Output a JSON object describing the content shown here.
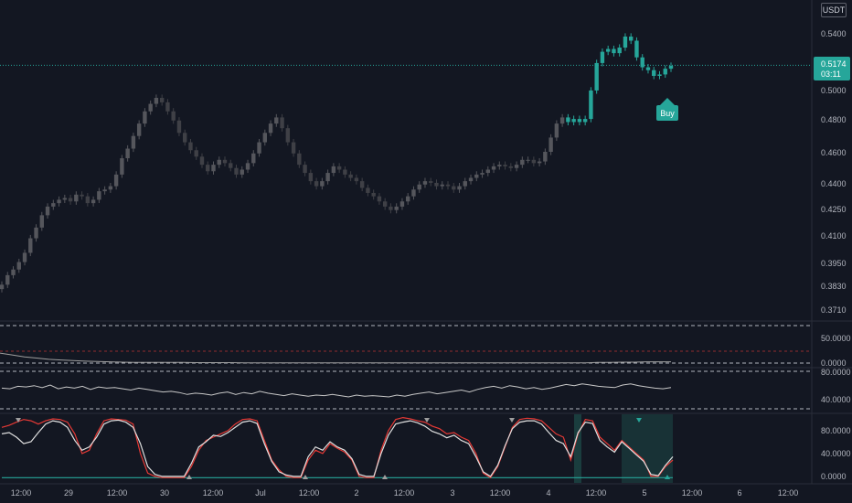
{
  "currency_label": "USDT",
  "colors": {
    "background": "#131722",
    "candle_up": "#4a4a4f",
    "candle_down": "#3a3b40",
    "candle_recent": "#26a69a",
    "signal_buy": "#26a69a",
    "price_line": "#26a69a",
    "osc_red": "#e53935",
    "osc_white": "#e0e0e0",
    "osc_teal": "#26a69a",
    "grid_dash": "#b2b5be"
  },
  "price_axis": {
    "ticks": [
      "0.5400",
      "0.5174",
      "0.5000",
      "0.4800",
      "0.4600",
      "0.4400",
      "0.4250",
      "0.4100",
      "0.3950",
      "0.3830",
      "0.3710"
    ],
    "current_price": "0.5174",
    "countdown": "03:11"
  },
  "buy_label": "Buy",
  "panes": {
    "pane1_ticks": [
      "50.0000",
      "0.0000"
    ],
    "pane2_ticks": [
      "80.0000",
      "40.0000"
    ],
    "pane3_ticks": [
      "80.0000",
      "40.0000",
      "0.0000"
    ]
  },
  "time_axis": [
    "12:00",
    "29",
    "12:00",
    "30",
    "12:00",
    "Jul",
    "12:00",
    "2",
    "12:00",
    "3",
    "12:00",
    "4",
    "12:00",
    "5",
    "12:00",
    "6",
    "12:00"
  ],
  "chart_data": {
    "type": "candlestick",
    "ylim": [
      0.365,
      0.555
    ],
    "price_scale": "log",
    "grid": false,
    "close": [
      0.384,
      0.389,
      0.392,
      0.396,
      0.401,
      0.409,
      0.415,
      0.422,
      0.427,
      0.429,
      0.431,
      0.432,
      0.43,
      0.434,
      0.433,
      0.429,
      0.431,
      0.436,
      0.437,
      0.439,
      0.446,
      0.456,
      0.462,
      0.47,
      0.478,
      0.486,
      0.491,
      0.495,
      0.492,
      0.486,
      0.48,
      0.472,
      0.466,
      0.461,
      0.457,
      0.452,
      0.448,
      0.452,
      0.455,
      0.453,
      0.45,
      0.446,
      0.449,
      0.453,
      0.459,
      0.466,
      0.472,
      0.478,
      0.482,
      0.475,
      0.466,
      0.459,
      0.452,
      0.447,
      0.442,
      0.439,
      0.442,
      0.447,
      0.451,
      0.449,
      0.446,
      0.444,
      0.442,
      0.438,
      0.435,
      0.433,
      0.43,
      0.427,
      0.425,
      0.427,
      0.43,
      0.433,
      0.437,
      0.44,
      0.442,
      0.441,
      0.439,
      0.44,
      0.439,
      0.437,
      0.439,
      0.442,
      0.444,
      0.446,
      0.447,
      0.449,
      0.451,
      0.452,
      0.451,
      0.45,
      0.452,
      0.455,
      0.455,
      0.453,
      0.454,
      0.46,
      0.469,
      0.478,
      0.482,
      0.479,
      0.481,
      0.479,
      0.481,
      0.5,
      0.519,
      0.527,
      0.529,
      0.526,
      0.53,
      0.538,
      0.535,
      0.523,
      0.516,
      0.514,
      0.51,
      0.511,
      0.515,
      0.517
    ]
  },
  "oscillator_1": {
    "range": [
      0,
      60
    ],
    "values": [
      16,
      13,
      10,
      8,
      6,
      5,
      4,
      3,
      2.5,
      2,
      1.5,
      1.2,
      1,
      1,
      1,
      1,
      0.8,
      0.8,
      0.8,
      0.8,
      0.5,
      0.5,
      0.5,
      0.5,
      0.5,
      0.5,
      0.5,
      0.5,
      0.5,
      0.5,
      0.5,
      0.5,
      0.5,
      0.5,
      0.5,
      0.5,
      0.5,
      0.5,
      0.5,
      0.5,
      0.5,
      0.5,
      0.5,
      0.5,
      0.5,
      0.5,
      0.5,
      0.5,
      0.5,
      1,
      1,
      1.5,
      1.5,
      2,
      2,
      2
    ]
  },
  "oscillator_2": {
    "range": [
      25,
      85
    ],
    "values": [
      58,
      57,
      61,
      60,
      62,
      59,
      63,
      57,
      60,
      58,
      61,
      56,
      60,
      58,
      59,
      57,
      55,
      58,
      56,
      54,
      52,
      53,
      51,
      48,
      50,
      49,
      47,
      50,
      52,
      48,
      51,
      49,
      53,
      50,
      48,
      46,
      49,
      47,
      45,
      47,
      46,
      48,
      46,
      44,
      47,
      45,
      46,
      45,
      44,
      47,
      45,
      48,
      50,
      52,
      49,
      51,
      53,
      55,
      52,
      56,
      59,
      61,
      58,
      62,
      60,
      57,
      59,
      56,
      58,
      61,
      64,
      62,
      65,
      63,
      61,
      60,
      59,
      63,
      65,
      62,
      60,
      58,
      57,
      59
    ]
  },
  "oscillator_3": {
    "range": [
      -5,
      100
    ],
    "red": [
      80,
      83,
      88,
      92,
      90,
      85,
      90,
      93,
      92,
      88,
      70,
      40,
      45,
      70,
      90,
      93,
      92,
      91,
      85,
      40,
      10,
      5,
      3,
      3,
      3,
      3,
      20,
      45,
      60,
      65,
      70,
      75,
      85,
      92,
      93,
      90,
      60,
      30,
      15,
      5,
      3,
      3,
      30,
      45,
      40,
      55,
      48,
      42,
      30,
      5,
      3,
      3,
      45,
      75,
      92,
      95,
      93,
      90,
      88,
      82,
      78,
      70,
      72,
      65,
      60,
      40,
      10,
      3,
      20,
      50,
      80,
      92,
      94,
      93,
      90,
      80,
      70,
      65,
      30,
      70,
      92,
      90,
      65,
      55,
      45,
      60,
      50,
      40,
      30,
      5,
      5,
      20,
      30
    ],
    "white": [
      70,
      72,
      65,
      55,
      58,
      72,
      85,
      90,
      88,
      80,
      60,
      45,
      50,
      65,
      85,
      90,
      91,
      88,
      80,
      55,
      20,
      8,
      5,
      5,
      5,
      5,
      25,
      50,
      58,
      68,
      66,
      72,
      80,
      88,
      90,
      86,
      55,
      28,
      12,
      7,
      5,
      5,
      35,
      50,
      45,
      58,
      50,
      45,
      32,
      8,
      5,
      5,
      40,
      68,
      85,
      88,
      90,
      87,
      82,
      74,
      70,
      64,
      68,
      60,
      55,
      35,
      12,
      5,
      22,
      52,
      78,
      88,
      90,
      90,
      85,
      72,
      60,
      55,
      35,
      72,
      88,
      86,
      60,
      50,
      42,
      58,
      48,
      38,
      28,
      8,
      6,
      22,
      35
    ],
    "teal": [
      3,
      3,
      3,
      3,
      3,
      3,
      3,
      3,
      3,
      3,
      3,
      3,
      3,
      3,
      3,
      3,
      3,
      3,
      3,
      3,
      3,
      3,
      3,
      3,
      3,
      3,
      3,
      3,
      3,
      3,
      3,
      3,
      3,
      3,
      3,
      3,
      3,
      3,
      3,
      3,
      3,
      3,
      3,
      3,
      3,
      3,
      3,
      3,
      3,
      3,
      3,
      3,
      3,
      3,
      3,
      3,
      3,
      3,
      3,
      3,
      3,
      3,
      3,
      3,
      3,
      3,
      3,
      3,
      3,
      3,
      3,
      3,
      3,
      3,
      3,
      3,
      3,
      3,
      3,
      3,
      3,
      3,
      3,
      3,
      3,
      3,
      3,
      3,
      3,
      3,
      3,
      3,
      3
    ]
  }
}
